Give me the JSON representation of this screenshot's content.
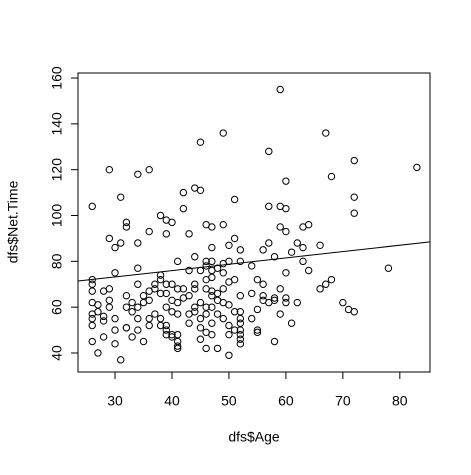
{
  "chart_data": {
    "type": "scatter",
    "xlabel": "dfs$Age",
    "ylabel": "dfs$Net.Time",
    "x": [
      26,
      26,
      26,
      26,
      26,
      26,
      26,
      26,
      26,
      27,
      27,
      27,
      28,
      28,
      28,
      28,
      29,
      29,
      29,
      29,
      29,
      30,
      30,
      30,
      30,
      30,
      31,
      31,
      31,
      32,
      32,
      32,
      32,
      32,
      32,
      33,
      33,
      33,
      34,
      34,
      34,
      34,
      34,
      34,
      34,
      35,
      35,
      35,
      36,
      36,
      36,
      36,
      36,
      36,
      37,
      37,
      37,
      38,
      38,
      38,
      38,
      38,
      38,
      39,
      39,
      39,
      39,
      39,
      39,
      39,
      39,
      40,
      40,
      40,
      40,
      40,
      40,
      41,
      41,
      41,
      41,
      41,
      41,
      41,
      41,
      42,
      42,
      42,
      42,
      43,
      43,
      43,
      43,
      43,
      44,
      44,
      44,
      44,
      44,
      44,
      45,
      45,
      45,
      45,
      45,
      45,
      45,
      46,
      46,
      46,
      46,
      46,
      46,
      46,
      46,
      46,
      47,
      47,
      47,
      47,
      47,
      47,
      47,
      47,
      47,
      47,
      48,
      48,
      48,
      48,
      48,
      49,
      49,
      49,
      49,
      49,
      49,
      49,
      50,
      50,
      50,
      50,
      50,
      50,
      50,
      51,
      51,
      51,
      51,
      51,
      52,
      52,
      52,
      52,
      52,
      52,
      52,
      52,
      52,
      52,
      54,
      54,
      54,
      55,
      55,
      55,
      55,
      56,
      56,
      56,
      56,
      57,
      57,
      57,
      57,
      58,
      58,
      58,
      58,
      59,
      59,
      59,
      59,
      59,
      60,
      60,
      60,
      60,
      60,
      60,
      61,
      61,
      62,
      62,
      63,
      63,
      63,
      64,
      64,
      66,
      66,
      67,
      67,
      68,
      68,
      70,
      71,
      72,
      72,
      72,
      72,
      78,
      83
    ],
    "values": [
      104,
      72,
      70,
      67,
      62,
      57,
      55,
      52,
      45,
      61,
      58,
      40,
      67,
      56,
      47,
      54,
      120,
      90,
      68,
      63,
      60,
      86,
      75,
      55,
      50,
      44,
      108,
      88,
      37,
      97,
      95,
      65,
      60,
      51,
      51,
      62,
      58,
      47,
      118,
      88,
      77,
      70,
      60,
      55,
      50,
      65,
      62,
      45,
      120,
      93,
      67,
      63,
      55,
      52,
      70,
      68,
      57,
      100,
      74,
      72,
      66,
      55,
      52,
      98,
      92,
      70,
      66,
      60,
      52,
      50,
      48,
      97,
      70,
      63,
      58,
      48,
      47,
      80,
      68,
      62,
      57,
      48,
      45,
      43,
      42,
      110,
      103,
      68,
      64,
      92,
      76,
      65,
      57,
      53,
      112,
      82,
      70,
      68,
      60,
      58,
      132,
      111,
      76,
      62,
      55,
      51,
      46,
      96,
      80,
      78,
      72,
      68,
      60,
      57,
      49,
      42,
      95,
      86,
      80,
      76,
      73,
      67,
      65,
      60,
      53,
      48,
      77,
      66,
      63,
      57,
      42,
      136,
      96,
      79,
      75,
      68,
      62,
      55,
      87,
      80,
      71,
      61,
      52,
      48,
      39,
      107,
      90,
      72,
      58,
      50,
      85,
      80,
      65,
      58,
      55,
      53,
      50,
      48,
      46,
      44,
      78,
      66,
      55,
      72,
      59,
      50,
      49,
      85,
      70,
      65,
      63,
      128,
      104,
      88,
      62,
      82,
      64,
      63,
      45,
      155,
      104,
      95,
      68,
      57,
      115,
      103,
      93,
      75,
      64,
      62,
      84,
      53,
      88,
      62,
      86,
      95,
      80,
      96,
      76,
      87,
      68,
      136,
      70,
      117,
      72,
      62,
      59,
      124,
      108,
      101,
      58,
      77,
      121
    ],
    "trend": {
      "x": [
        23.5,
        85.3
      ],
      "values": [
        71.4,
        88.5
      ]
    },
    "xlim": [
      23.5,
      85.3
    ],
    "ylim": [
      31.7,
      162.2
    ],
    "xticks": [
      30,
      40,
      50,
      60,
      70,
      80
    ],
    "yticks": [
      40,
      60,
      80,
      100,
      120,
      140,
      160
    ],
    "color": "#000000"
  }
}
